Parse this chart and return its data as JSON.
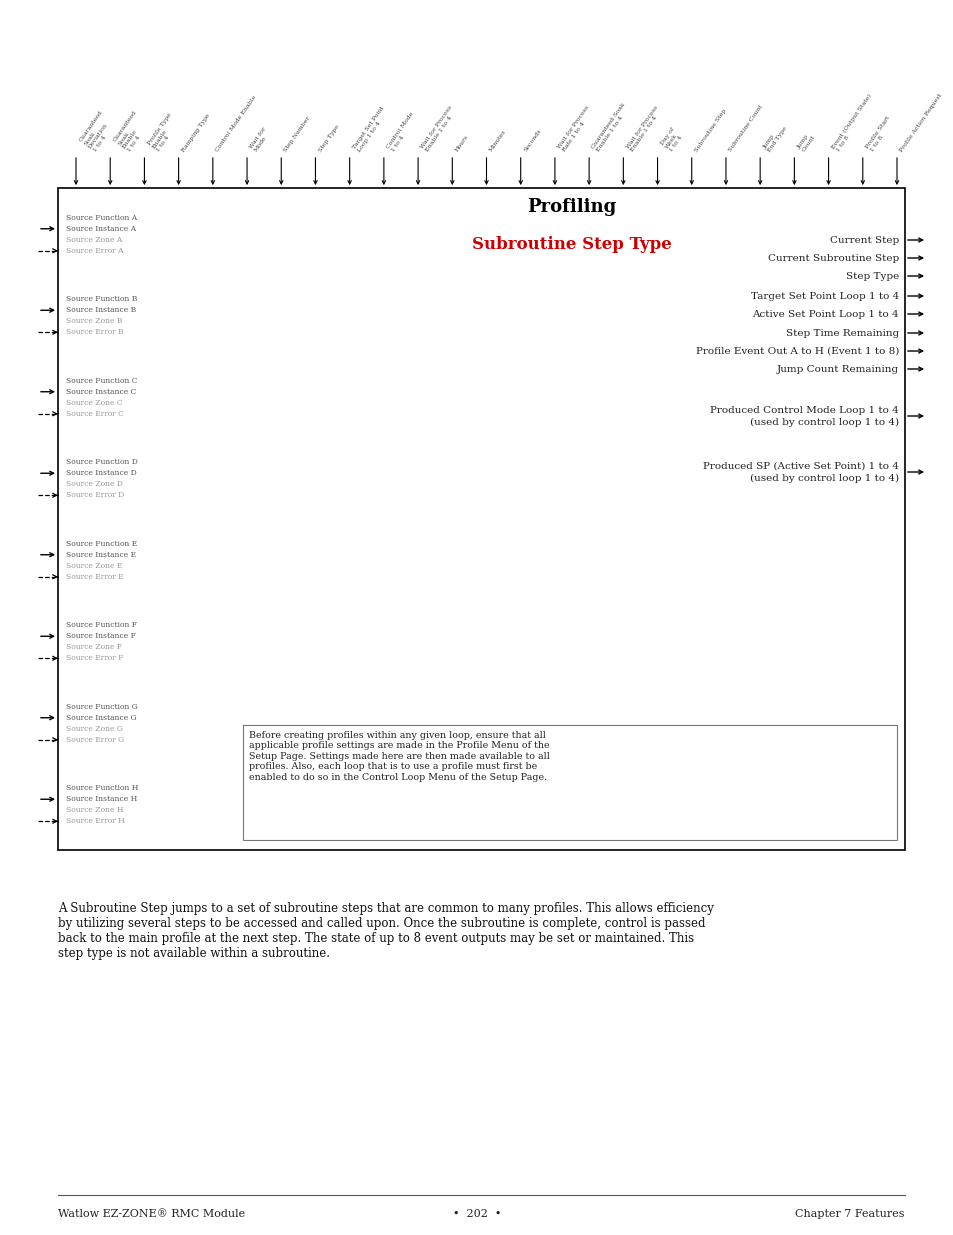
{
  "title_line1": "Profiling",
  "title_line2": "Subroutine Step Type",
  "title_color": "#000000",
  "title_line2_color": "#cc0000",
  "page_bg": "#ffffff",
  "box_bg": "#ffffff",
  "box_border": "#000000",
  "left_labels": [
    [
      "Source Function A",
      "Source Instance A",
      "Source Zone A",
      "Source Error A"
    ],
    [
      "Source Function B",
      "Source Instance B",
      "Source Zone B",
      "Source Error B"
    ],
    [
      "Source Function C",
      "Source Instance C",
      "Source Zone C",
      "Source Error C"
    ],
    [
      "Source Function D",
      "Source Instance D",
      "Source Zone D",
      "Source Error D"
    ],
    [
      "Source Function E",
      "Source Instance E",
      "Source Zone E",
      "Source Error E"
    ],
    [
      "Source Function F",
      "Source Instance F",
      "Source Zone F",
      "Source Error F"
    ],
    [
      "Source Function G",
      "Source Instance G",
      "Source Zone G",
      "Source Error G"
    ],
    [
      "Source Function H",
      "Source Instance H",
      "Source Zone H",
      "Source Error H"
    ]
  ],
  "right_labels": [
    "Current Step",
    "Current Subroutine Step",
    "Step Type",
    "Target Set Point Loop 1 to 4",
    "Active Set Point Loop 1 to 4",
    "Step Time Remaining",
    "Profile Event Out A to H (Event 1 to 8)",
    "Jump Count Remaining",
    "Produced Control Mode Loop 1 to 4|(used by control loop 1 to 4)",
    "Produced SP (Active Set Point) 1 to 4|(used by control loop 1 to 4)"
  ],
  "top_labels": [
    "Guaranteed\nSoak\nDeviation\n1 to 4",
    "Guaranteed\nSoak\nEnable\n1 to 4",
    "Profile Type\nEnable\n1 to 4",
    "Ramping Type",
    "Control Mode Enable",
    "Wait for\nMode",
    "Step Number",
    "Step Type",
    "Target Set Point\nLoop 1 to 4",
    "Control Mode\n1 to 4",
    "Wait for Process\nEnable 1 to 4",
    "Hours",
    "Minutes",
    "Seconds",
    "Wait for Process\nRate 1 to 4",
    "Guaranteed Soak\nEnable 1 to 4",
    "Wait for Process\nEnable 1 to 4",
    "Day of\nWeek\n1 to 4",
    "Subroutine Step",
    "Subroutine Count",
    "Jump\nEnd Type",
    "Jump\nCount",
    "Event (Output State)\n1 to 8",
    "Profile Start\n1 to 8",
    "Profile Action Request"
  ],
  "note_text": "Before creating profiles within any given loop, ensure that all\napplicable profile settings are made in the Profile Menu of the\nSetup Page. Settings made here are then made available to all\nprofiles. Also, each loop that is to use a profile must first be\nenabled to do so in the Control Loop Menu of the Setup Page.",
  "body_text": "A Subroutine Step jumps to a set of subroutine steps that are common to many profiles. This allows efficiency\nby utilizing several steps to be accessed and called upon. Once the subroutine is complete, control is passed\nback to the main profile at the next step. The state of up to 8 event outputs may be set or maintained. This\nstep type is not available within a subroutine.",
  "footer_left": "Watlow EZ-ZONE® RMC Module",
  "footer_center": "•  202  •",
  "footer_right": "Chapter 7 Features",
  "label_color": "#999999",
  "label_color_dark": "#555555"
}
